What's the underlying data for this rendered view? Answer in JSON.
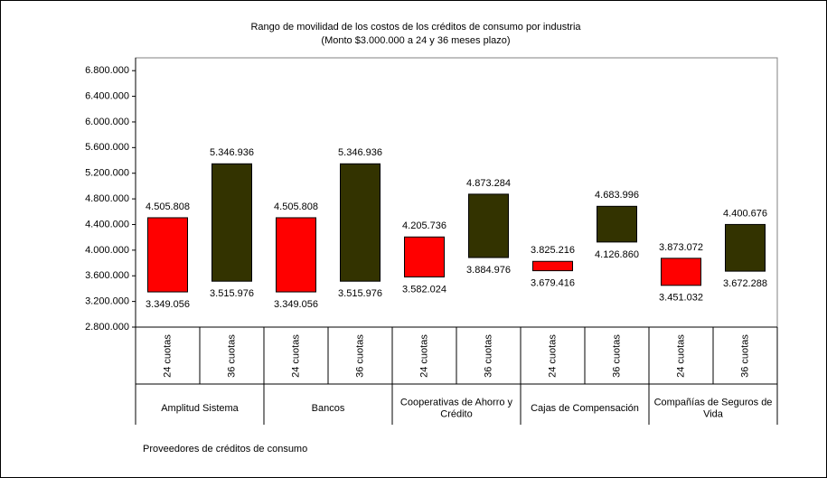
{
  "chart_data": {
    "type": "floating_bar",
    "title": "Rango de movilidad de los costos de los créditos de consumo por industria",
    "subtitle": "(Monto $3.000.000 a 24 y 36 meses plazo)",
    "xlabel": "Proveedores de créditos de consumo",
    "groups": [
      "Amplitud Sistema",
      "Bancos",
      "Cooperativas de Ahorro y Crédito",
      "Cajas de Compensación",
      "Compañías de Seguros de Vida"
    ],
    "categories": [
      "24 cuotas",
      "36 cuotas",
      "24 cuotas",
      "36 cuotas",
      "24 cuotas",
      "36 cuotas",
      "24 cuotas",
      "36 cuotas",
      "24 cuotas",
      "36 cuotas"
    ],
    "colors": [
      "#ff0000",
      "#333300",
      "#ff0000",
      "#333300",
      "#ff0000",
      "#333300",
      "#ff0000",
      "#333300",
      "#ff0000",
      "#333300"
    ],
    "high": [
      4505808,
      5346936,
      4505808,
      5346936,
      4205736,
      4873284,
      3825216,
      4683996,
      3873072,
      4400676
    ],
    "high_labels": [
      "4.505.808",
      "5.346.936",
      "4.505.808",
      "5.346.936",
      "4.205.736",
      "4.873.284",
      "3.825.216",
      "4.683.996",
      "3.873.072",
      "4.400.676"
    ],
    "low": [
      3349056,
      3515976,
      3349056,
      3515976,
      3582024,
      3884976,
      3679416,
      4126860,
      3451032,
      3672288
    ],
    "low_labels": [
      "3.349.056",
      "3.515.976",
      "3.349.056",
      "3.515.976",
      "3.582.024",
      "3.884.976",
      "3.679.416",
      "4.126.860",
      "3.451.032",
      "3.672.288"
    ],
    "ylim": [
      2800000,
      7000000
    ],
    "yticks": [
      {
        "value": 2800000,
        "label": "2.800.000"
      },
      {
        "value": 3200000,
        "label": "3.200.000"
      },
      {
        "value": 3600000,
        "label": "3.600.000"
      },
      {
        "value": 4000000,
        "label": "4.000.000"
      },
      {
        "value": 4400000,
        "label": "4.400.000"
      },
      {
        "value": 4800000,
        "label": "4.800.000"
      },
      {
        "value": 5200000,
        "label": "5.200.000"
      },
      {
        "value": 5600000,
        "label": "5.600.000"
      },
      {
        "value": 6000000,
        "label": "6.000.000"
      },
      {
        "value": 6400000,
        "label": "6.400.000"
      },
      {
        "value": 6800000,
        "label": "6.800.000"
      }
    ]
  }
}
